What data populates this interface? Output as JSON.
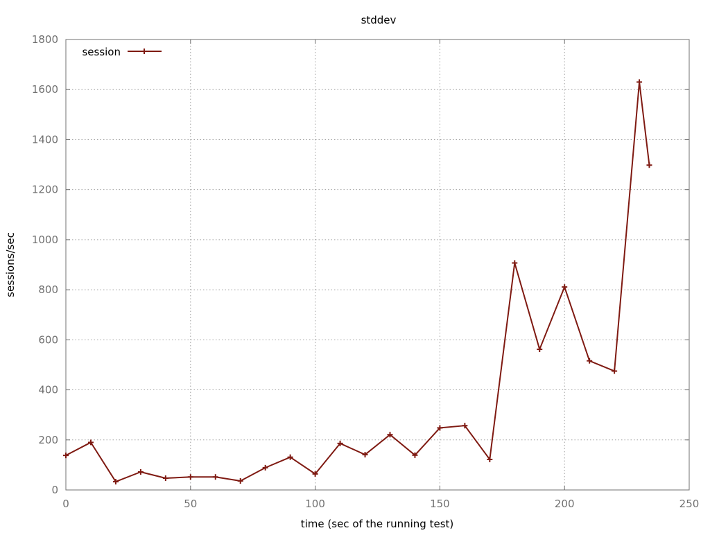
{
  "chart_data": {
    "type": "line",
    "title": "stddev",
    "xlabel": "time (sec of the running test)",
    "ylabel": "sessions/sec",
    "xlim": [
      0,
      250
    ],
    "ylim": [
      0,
      1800
    ],
    "x_ticks": [
      "0",
      "50",
      "100",
      "150",
      "200",
      "250"
    ],
    "y_ticks": [
      "0",
      "200",
      "400",
      "600",
      "800",
      "1000",
      "1200",
      "1400",
      "1600",
      "1800"
    ],
    "grid": true,
    "legend_position": "top-left",
    "series": [
      {
        "name": "session",
        "color": "#7f1a12",
        "marker": "plus",
        "x": [
          0,
          10,
          20,
          30,
          40,
          50,
          60,
          70,
          80,
          90,
          100,
          110,
          120,
          130,
          140,
          150,
          160,
          170,
          180,
          190,
          200,
          210,
          220,
          230,
          234
        ],
        "y": [
          138,
          190,
          33,
          72,
          47,
          52,
          52,
          36,
          89,
          131,
          64,
          186,
          141,
          221,
          139,
          248,
          257,
          122,
          907,
          562,
          811,
          516,
          475,
          1630,
          1298
        ]
      }
    ]
  }
}
